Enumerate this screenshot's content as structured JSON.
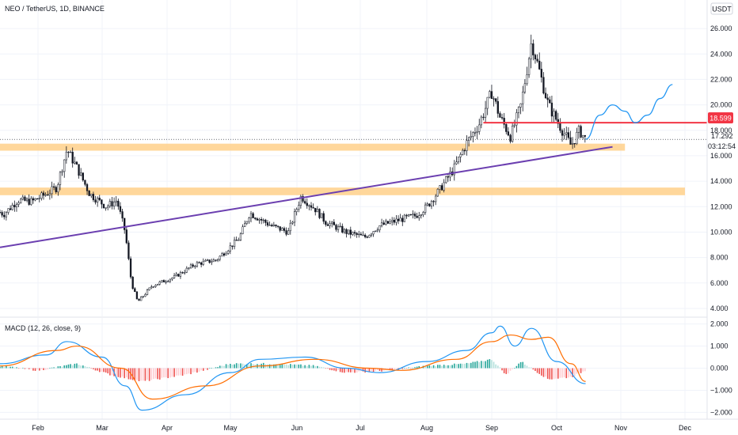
{
  "header": {
    "symbol": "NEO / TetherUS, 1D, BINANCE",
    "currency": "USDT"
  },
  "colors": {
    "up": "#131722",
    "down": "#131722",
    "support_zone": "#ffd08a",
    "trendline": "#6b3fb0",
    "resistance": "#f23645",
    "projection": "#2196f3",
    "macd_line": "#2196f3",
    "signal_line": "#ff6d00",
    "hist_up": "#26a69a",
    "hist_up_light": "#b2dfdb",
    "hist_down": "#ef5350",
    "hist_down_light": "#ffcdd2"
  },
  "price_labels": {
    "resistance": "18.599",
    "last": "17.292",
    "countdown": "03:12:54"
  },
  "macd": {
    "label": "MACD (12, 26, close, 9)"
  },
  "chart_data": [
    {
      "type": "candlestick",
      "title": "NEO / TetherUS, 1D, BINANCE",
      "ylabel": "USDT",
      "ylim": [
        3.5,
        27
      ],
      "y_ticks": [
        "26.000",
        "24.000",
        "22.000",
        "20.000",
        "18.000",
        "16.000",
        "14.000",
        "12.000",
        "10.000",
        "8.000",
        "6.000",
        "4.000"
      ],
      "x_ticks": [
        "Feb",
        "Mar",
        "Apr",
        "May",
        "Jun",
        "Jul",
        "Aug",
        "Sep",
        "Oct",
        "Nov",
        "Dec"
      ],
      "price_path": [
        [
          "Jan 1",
          11.2
        ],
        [
          "Jan 8",
          12.0
        ],
        [
          "Jan 15",
          11.4
        ],
        [
          "Jan 22",
          12.5
        ],
        [
          "Jan 29",
          12.4
        ],
        [
          "Feb 5",
          13.0
        ],
        [
          "Feb 10",
          13.5
        ],
        [
          "Feb 15",
          16.5
        ],
        [
          "Feb 20",
          15.0
        ],
        [
          "Feb 26",
          13.0
        ],
        [
          "Mar 3",
          12.0
        ],
        [
          "Mar 8",
          12.5
        ],
        [
          "Mar 12",
          10.0
        ],
        [
          "Mar 15",
          6.0
        ],
        [
          "Mar 18",
          4.5
        ],
        [
          "Mar 25",
          5.8
        ],
        [
          "Apr 5",
          6.5
        ],
        [
          "Apr 15",
          7.5
        ],
        [
          "Apr 25",
          7.8
        ],
        [
          "May 5",
          9.5
        ],
        [
          "May 10",
          11.5
        ],
        [
          "May 20",
          10.5
        ],
        [
          "May 28",
          10.0
        ],
        [
          "Jun 3",
          12.8
        ],
        [
          "Jun 10",
          11.8
        ],
        [
          "Jun 15",
          10.8
        ],
        [
          "Jun 25",
          10.0
        ],
        [
          "Jul 3",
          9.6
        ],
        [
          "Jul 10",
          10.5
        ],
        [
          "Jul 20",
          11.0
        ],
        [
          "Jul 27",
          11.3
        ],
        [
          "Aug 1",
          12.0
        ],
        [
          "Aug 7",
          13.3
        ],
        [
          "Aug 14",
          15.0
        ],
        [
          "Aug 20",
          17.0
        ],
        [
          "Aug 26",
          18.5
        ],
        [
          "Sep 1",
          21.0
        ],
        [
          "Sep 5",
          19.0
        ],
        [
          "Sep 10",
          17.5
        ],
        [
          "Sep 15",
          20.0
        ],
        [
          "Sep 20",
          25.0
        ],
        [
          "Sep 24",
          22.5
        ],
        [
          "Sep 28",
          20.0
        ],
        [
          "Oct 2",
          18.5
        ],
        [
          "Oct 8",
          16.8
        ],
        [
          "Oct 12",
          18.0
        ],
        [
          "Oct 15",
          17.29
        ]
      ],
      "horizontal_levels": [
        {
          "label": "resistance",
          "value": 18.599,
          "from": "Aug 28",
          "to": "end"
        }
      ],
      "zones": [
        {
          "name": "upper support zone",
          "from": 16.4,
          "to": 16.95
        },
        {
          "name": "lower support zone",
          "from": 12.9,
          "to": 13.5
        }
      ],
      "trendline": [
        [
          "Dec 20",
          8.8
        ],
        [
          "Oct 28",
          16.7
        ]
      ],
      "projection": [
        [
          "Oct 15",
          17.3
        ],
        [
          "Oct 22",
          19.2
        ],
        [
          "Oct 28",
          20.0
        ],
        [
          "Nov 3",
          19.5
        ],
        [
          "Nov 8",
          18.6
        ],
        [
          "Nov 14",
          19.2
        ],
        [
          "Nov 20",
          20.5
        ],
        [
          "Nov 26",
          21.6
        ]
      ],
      "last_price": 17.292
    },
    {
      "type": "line",
      "title": "MACD (12, 26, close, 9)",
      "ylim": [
        -2.2,
        2.2
      ],
      "y_ticks": [
        "2.000",
        "1.000",
        "0.000",
        "−1.000",
        "−2.000"
      ],
      "series": [
        {
          "name": "MACD",
          "values_by_date": [
            [
              "Jan 1",
              0.2
            ],
            [
              "Feb 5",
              0.6
            ],
            [
              "Feb 15",
              1.2
            ],
            [
              "Mar 1",
              0.5
            ],
            [
              "Mar 12",
              -0.8
            ],
            [
              "Mar 20",
              -1.9
            ],
            [
              "Apr 10",
              -1.2
            ],
            [
              "May 1",
              -0.2
            ],
            [
              "May 15",
              0.4
            ],
            [
              "Jun 5",
              0.5
            ],
            [
              "Jun 25",
              0.0
            ],
            [
              "Jul 10",
              -0.2
            ],
            [
              "Aug 1",
              0.3
            ],
            [
              "Aug 20",
              0.8
            ],
            [
              "Sep 1",
              1.6
            ],
            [
              "Sep 5",
              1.9
            ],
            [
              "Sep 12",
              1.0
            ],
            [
              "Sep 20",
              1.8
            ],
            [
              "Oct 1",
              0.3
            ],
            [
              "Oct 15",
              -0.7
            ]
          ]
        },
        {
          "name": "Signal",
          "values_by_date": [
            [
              "Jan 1",
              0.1
            ],
            [
              "Feb 10",
              0.8
            ],
            [
              "Feb 20",
              1.0
            ],
            [
              "Mar 10",
              0.0
            ],
            [
              "Mar 25",
              -1.4
            ],
            [
              "Apr 20",
              -0.8
            ],
            [
              "May 15",
              0.1
            ],
            [
              "Jun 10",
              0.4
            ],
            [
              "Jul 5",
              0.0
            ],
            [
              "Jul 20",
              -0.1
            ],
            [
              "Aug 15",
              0.4
            ],
            [
              "Sep 1",
              1.2
            ],
            [
              "Sep 10",
              1.5
            ],
            [
              "Sep 20",
              1.3
            ],
            [
              "Sep 28",
              1.4
            ],
            [
              "Oct 8",
              0.2
            ],
            [
              "Oct 15",
              -0.6
            ]
          ]
        }
      ],
      "histogram_by_date": [
        [
          "Jan 1",
          0.1
        ],
        [
          "Feb 1",
          -0.1
        ],
        [
          "Feb 20",
          0.2
        ],
        [
          "Mar 5",
          -0.3
        ],
        [
          "Mar 20",
          -0.6
        ],
        [
          "Apr 10",
          -0.3
        ],
        [
          "May 1",
          0.2
        ],
        [
          "May 20",
          0.2
        ],
        [
          "Jun 10",
          0.1
        ],
        [
          "Jun 25",
          -0.2
        ],
        [
          "Jul 15",
          -0.1
        ],
        [
          "Aug 1",
          0.1
        ],
        [
          "Aug 20",
          0.2
        ],
        [
          "Sep 1",
          0.4
        ],
        [
          "Sep 8",
          -0.3
        ],
        [
          "Sep 15",
          0.3
        ],
        [
          "Sep 28",
          -0.5
        ],
        [
          "Oct 8",
          -0.4
        ],
        [
          "Oct 15",
          -0.1
        ]
      ]
    }
  ]
}
